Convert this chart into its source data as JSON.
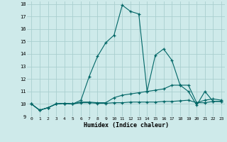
{
  "xlabel": "Humidex (Indice chaleur)",
  "bg_color": "#ceeaea",
  "grid_color": "#aacfcf",
  "line_color": "#006666",
  "xlim": [
    -0.5,
    23.4
  ],
  "ylim": [
    9,
    18.2
  ],
  "xticks": [
    0,
    1,
    2,
    3,
    4,
    5,
    6,
    7,
    8,
    9,
    10,
    11,
    12,
    13,
    14,
    15,
    16,
    17,
    18,
    19,
    20,
    21,
    22,
    23
  ],
  "yticks": [
    9,
    10,
    11,
    12,
    13,
    14,
    15,
    16,
    17,
    18
  ],
  "line1_x": [
    0,
    1,
    2,
    3,
    4,
    5,
    6,
    7,
    8,
    9,
    10,
    11,
    12,
    13,
    14,
    15,
    16,
    17,
    18,
    19,
    20,
    21,
    22,
    23
  ],
  "line1_y": [
    10.0,
    9.5,
    9.7,
    10.0,
    10.05,
    10.0,
    10.1,
    10.1,
    10.05,
    10.05,
    10.1,
    10.1,
    10.15,
    10.15,
    10.15,
    10.15,
    10.2,
    10.2,
    10.25,
    10.3,
    10.1,
    10.1,
    10.2,
    10.2
  ],
  "line2_x": [
    0,
    1,
    2,
    3,
    4,
    5,
    6,
    7,
    8,
    9,
    10,
    11,
    12,
    13,
    14,
    15,
    16,
    17,
    18,
    19,
    20,
    21,
    22,
    23
  ],
  "line2_y": [
    10.0,
    9.5,
    9.7,
    10.0,
    10.05,
    10.0,
    10.3,
    12.2,
    13.8,
    14.9,
    15.5,
    17.9,
    17.4,
    17.2,
    11.0,
    13.9,
    14.4,
    13.5,
    11.5,
    11.0,
    9.9,
    11.0,
    10.2,
    10.2
  ],
  "line3_x": [
    0,
    1,
    2,
    3,
    4,
    5,
    6,
    7,
    8,
    9,
    10,
    11,
    12,
    13,
    14,
    15,
    16,
    17,
    18,
    19,
    20,
    21,
    22,
    23
  ],
  "line3_y": [
    10.0,
    9.5,
    9.7,
    10.0,
    10.05,
    10.0,
    10.15,
    10.15,
    10.1,
    10.1,
    10.5,
    10.7,
    10.8,
    10.9,
    11.0,
    11.1,
    11.2,
    11.5,
    11.5,
    11.5,
    10.1,
    10.3,
    10.4,
    10.3
  ]
}
